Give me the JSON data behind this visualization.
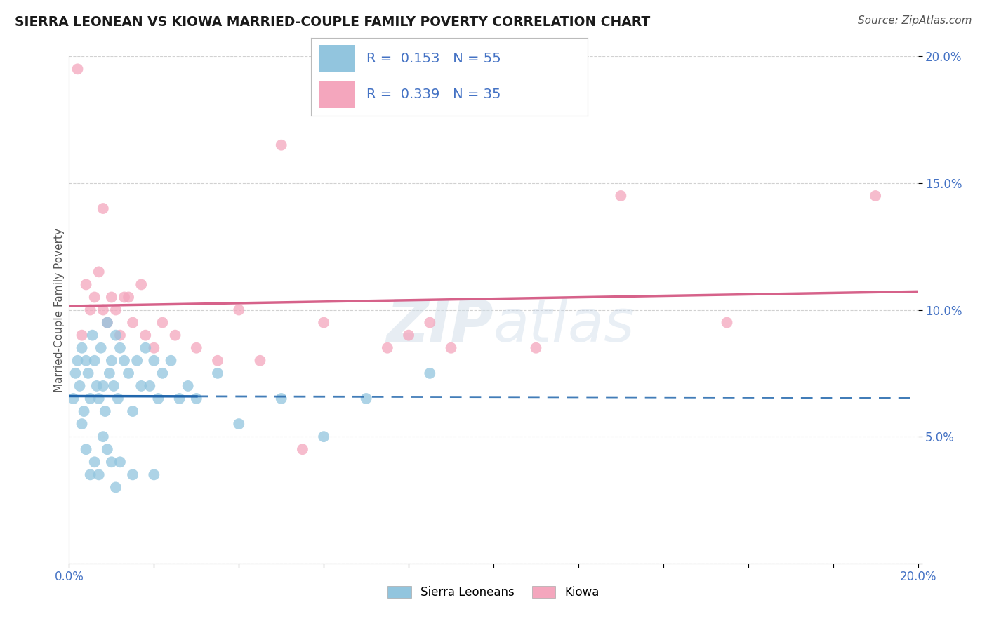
{
  "title": "SIERRA LEONEAN VS KIOWA MARRIED-COUPLE FAMILY POVERTY CORRELATION CHART",
  "source": "Source: ZipAtlas.com",
  "ylabel": "Married-Couple Family Poverty",
  "r_blue": 0.153,
  "n_blue": 55,
  "r_pink": 0.339,
  "n_pink": 35,
  "legend_label_blue": "Sierra Leoneans",
  "legend_label_pink": "Kiowa",
  "blue_color": "#92c5de",
  "pink_color": "#f4a6bd",
  "blue_line_color": "#2166ac",
  "pink_line_color": "#d6628a",
  "text_color_blue": "#4472c4",
  "background_color": "#ffffff",
  "grid_color": "#cccccc",
  "blue_scatter_x": [
    0.1,
    0.15,
    0.2,
    0.25,
    0.3,
    0.35,
    0.4,
    0.45,
    0.5,
    0.55,
    0.6,
    0.65,
    0.7,
    0.75,
    0.8,
    0.85,
    0.9,
    0.95,
    1.0,
    1.05,
    1.1,
    1.15,
    1.2,
    1.3,
    1.4,
    1.5,
    1.6,
    1.7,
    1.8,
    1.9,
    2.0,
    2.1,
    2.2,
    2.4,
    2.6,
    2.8,
    3.0,
    3.5,
    4.0,
    5.0,
    6.0,
    7.0,
    8.5,
    0.3,
    0.4,
    0.5,
    0.6,
    0.7,
    0.8,
    0.9,
    1.0,
    1.1,
    1.2,
    1.5,
    2.0
  ],
  "blue_scatter_y": [
    6.5,
    7.5,
    8.0,
    7.0,
    8.5,
    6.0,
    8.0,
    7.5,
    6.5,
    9.0,
    8.0,
    7.0,
    6.5,
    8.5,
    7.0,
    6.0,
    9.5,
    7.5,
    8.0,
    7.0,
    9.0,
    6.5,
    8.5,
    8.0,
    7.5,
    6.0,
    8.0,
    7.0,
    8.5,
    7.0,
    8.0,
    6.5,
    7.5,
    8.0,
    6.5,
    7.0,
    6.5,
    7.5,
    5.5,
    6.5,
    5.0,
    6.5,
    7.5,
    5.5,
    4.5,
    3.5,
    4.0,
    3.5,
    5.0,
    4.5,
    4.0,
    3.0,
    4.0,
    3.5,
    3.5
  ],
  "pink_scatter_x": [
    0.2,
    0.4,
    0.6,
    0.7,
    0.8,
    0.9,
    1.0,
    1.1,
    1.2,
    1.4,
    1.5,
    1.7,
    1.8,
    2.0,
    2.2,
    2.5,
    3.0,
    3.5,
    4.0,
    4.5,
    5.0,
    6.0,
    7.5,
    8.0,
    9.0,
    11.0,
    13.0,
    15.5,
    0.5,
    0.8,
    1.3,
    0.3,
    5.5,
    8.5,
    19.0
  ],
  "pink_scatter_y": [
    19.5,
    11.0,
    10.5,
    11.5,
    10.0,
    9.5,
    10.5,
    10.0,
    9.0,
    10.5,
    9.5,
    11.0,
    9.0,
    8.5,
    9.5,
    9.0,
    8.5,
    8.0,
    10.0,
    8.0,
    16.5,
    9.5,
    8.5,
    9.0,
    8.5,
    8.5,
    14.5,
    9.5,
    10.0,
    14.0,
    10.5,
    9.0,
    4.5,
    9.5,
    14.5
  ],
  "xlim": [
    0,
    20
  ],
  "ylim": [
    0,
    20
  ],
  "xtick_positions": [
    0,
    2,
    4,
    6,
    8,
    10,
    12,
    14,
    16,
    18,
    20
  ],
  "xtick_labels": [
    "0.0%",
    "",
    "",
    "",
    "",
    "",
    "",
    "",
    "",
    "",
    "20.0%"
  ],
  "ytick_positions": [
    0,
    5,
    10,
    15,
    20
  ],
  "ytick_labels": [
    "",
    "5.0%",
    "10.0%",
    "15.0%",
    "20.0%"
  ]
}
